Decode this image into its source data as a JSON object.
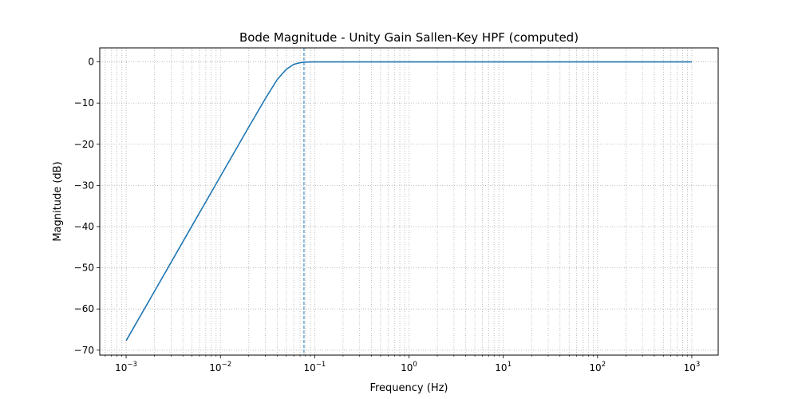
{
  "chart_data": {
    "type": "line",
    "title": "Bode Magnitude - Unity Gain Sallen-Key HPF (computed)",
    "xlabel": "Frequency (Hz)",
    "ylabel": "Magnitude (dB)",
    "xscale": "log",
    "xlim": [
      0.000525,
      1905
    ],
    "ylim": [
      -71.2,
      3.4
    ],
    "grid": true,
    "x_ticks": [
      {
        "value": 0.001,
        "base": "10",
        "exp": "−3"
      },
      {
        "value": 0.01,
        "base": "10",
        "exp": "−2"
      },
      {
        "value": 0.1,
        "base": "10",
        "exp": "−1"
      },
      {
        "value": 1,
        "base": "10",
        "exp": "0"
      },
      {
        "value": 10,
        "base": "10",
        "exp": "1"
      },
      {
        "value": 100,
        "base": "10",
        "exp": "2"
      },
      {
        "value": 1000,
        "base": "10",
        "exp": "3"
      }
    ],
    "y_ticks": [
      {
        "value": 0,
        "label": "0"
      },
      {
        "value": -10,
        "label": "−10"
      },
      {
        "value": -20,
        "label": "−20"
      },
      {
        "value": -30,
        "label": "−30"
      },
      {
        "value": -40,
        "label": "−40"
      },
      {
        "value": -50,
        "label": "−50"
      },
      {
        "value": -60,
        "label": "−60"
      },
      {
        "value": -70,
        "label": "−70"
      }
    ],
    "series": [
      {
        "color": "#1f77b4",
        "x": [
          0.001,
          0.002,
          0.005,
          0.01,
          0.02,
          0.03,
          0.04,
          0.05,
          0.06,
          0.07,
          0.08,
          0.1,
          0.15,
          0.2,
          0.5,
          1,
          10,
          100,
          1000
        ],
        "y": [
          -67.7,
          -55.7,
          -39.8,
          -27.8,
          -15.8,
          -8.9,
          -4.3,
          -1.8,
          -0.6,
          -0.2,
          -0.05,
          -0.01,
          0,
          0,
          0,
          0,
          0,
          0,
          0
        ]
      }
    ],
    "annotations": [
      {
        "type": "vline",
        "x": 0.077,
        "style": "dashed",
        "color": "#1f77b4"
      }
    ]
  }
}
